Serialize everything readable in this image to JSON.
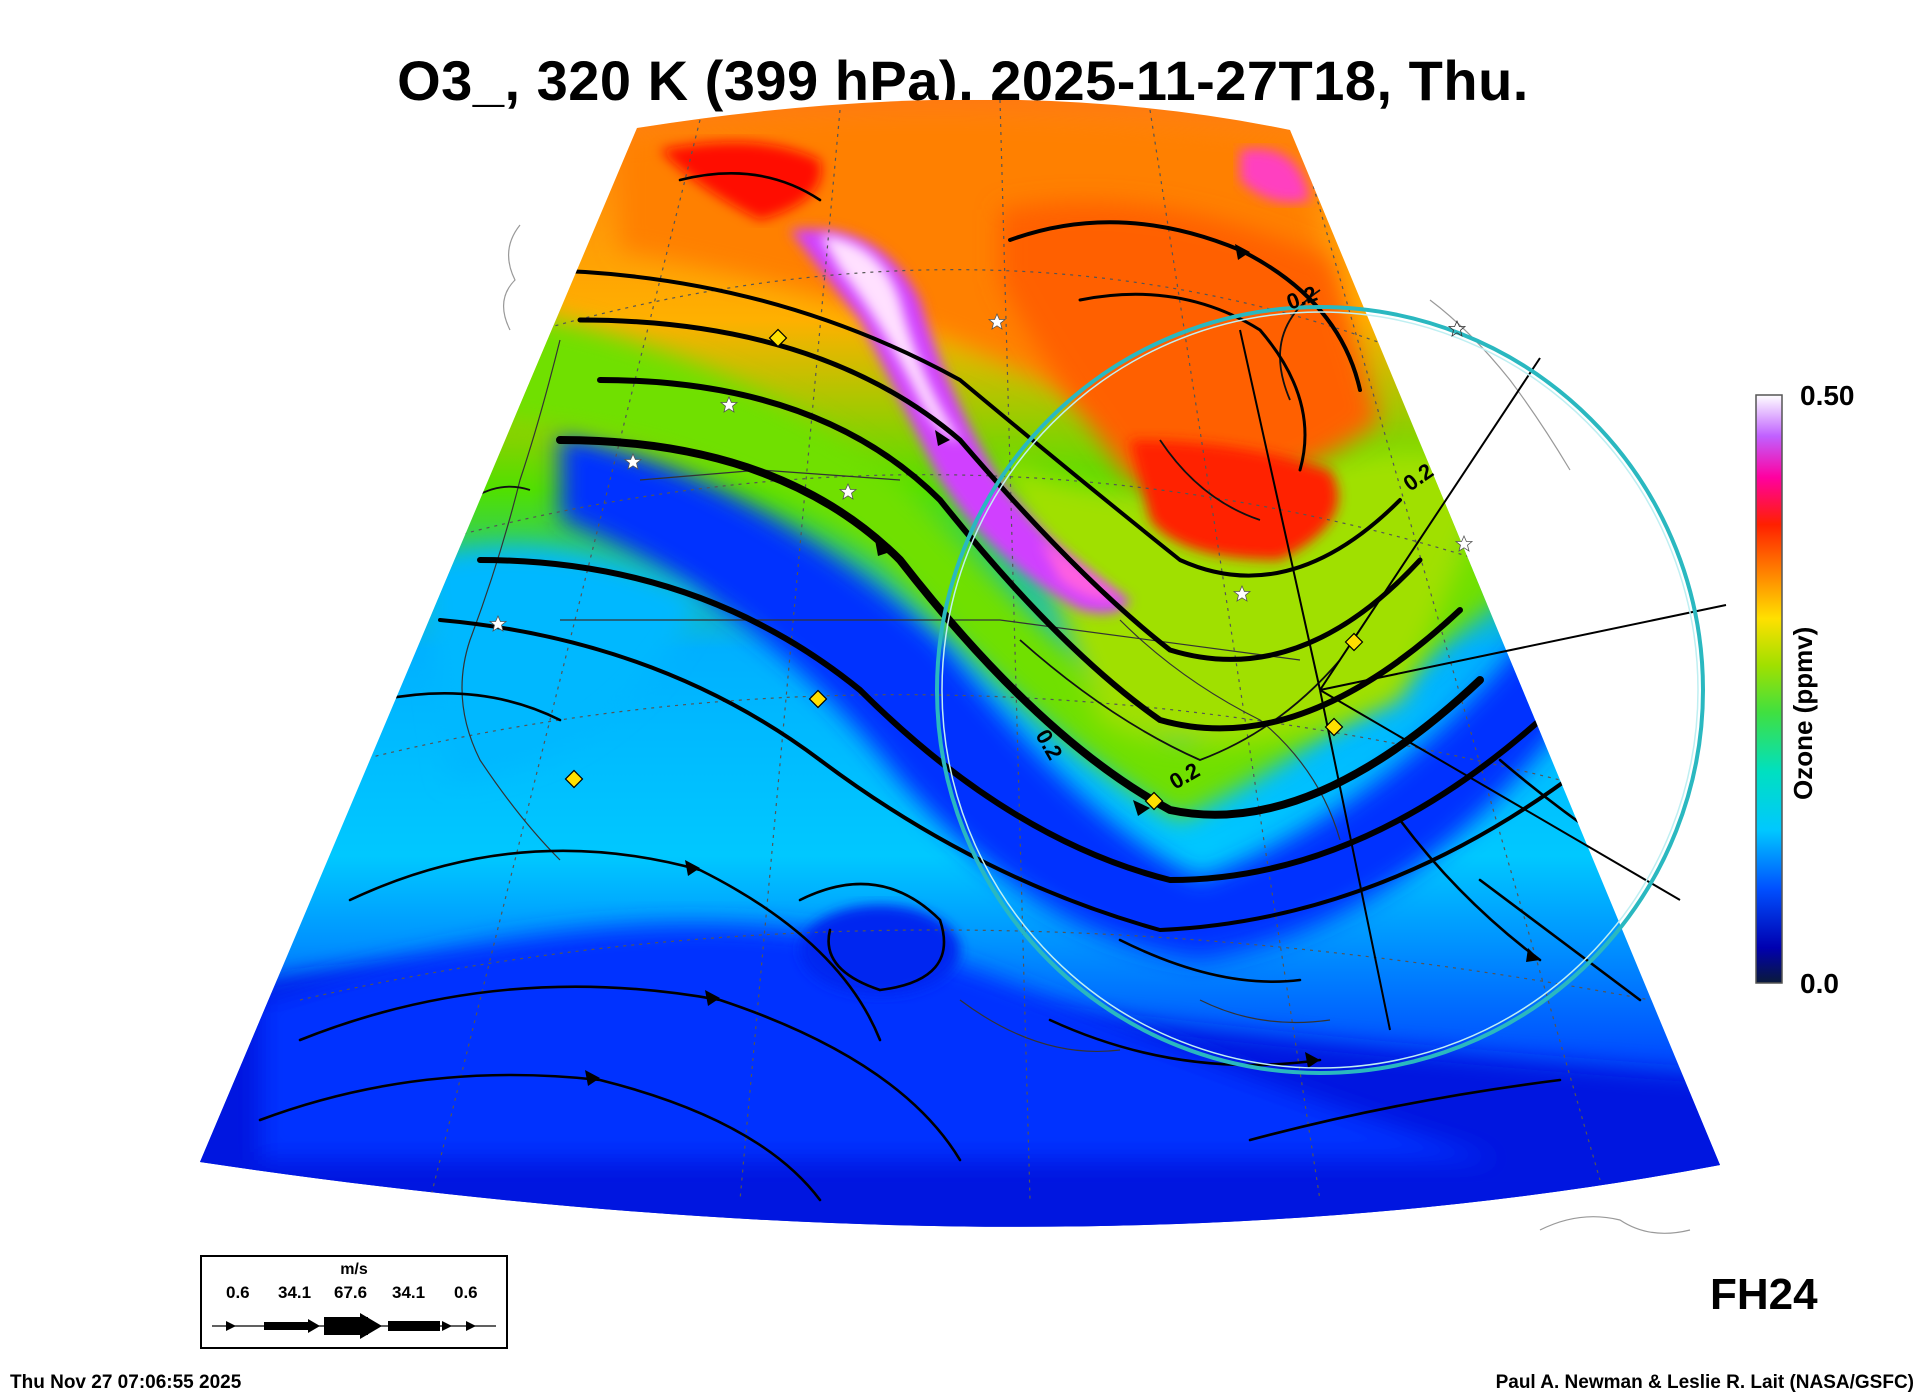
{
  "header": {
    "title": "O3_, 320 K (399 hPa), 2025-11-27T18, Thu."
  },
  "colorbar": {
    "max_label": "0.50",
    "min_label": "0.0",
    "title": "Ozone (ppmv)",
    "stops": [
      "#0a1a3a",
      "#0000b0",
      "#0050ff",
      "#00c8ff",
      "#00e0c0",
      "#40e040",
      "#a0e000",
      "#ffe000",
      "#ff8000",
      "#ff2000",
      "#ff00a0",
      "#c060ff",
      "#ffffff"
    ]
  },
  "contour_labels": [
    "0.2",
    "0.2",
    "0.2",
    "0.2"
  ],
  "wind_key": {
    "unit": "m/s",
    "values": [
      "0.6",
      "34.1",
      "67.6",
      "34.1",
      "0.6"
    ]
  },
  "forecast_hour": "FH24",
  "footer": {
    "timestamp": "Thu Nov 27 07:06:55 2025",
    "credit": "Paul A. Newman & Leslie R. Lait (NASA/GSFC)"
  },
  "colors": {
    "ring": "#2ab8c0",
    "station_marker": "#ffe000",
    "star_marker": "#ffffff"
  },
  "icons": {
    "station": "yellow-diamond-icon",
    "site": "white-star-icon"
  }
}
